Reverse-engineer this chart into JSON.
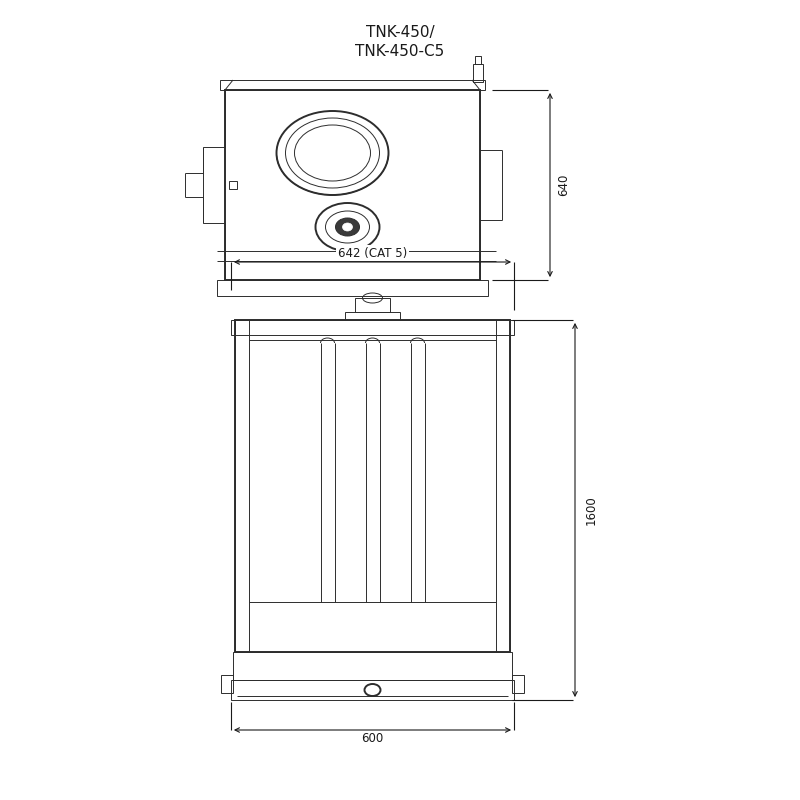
{
  "title": "TNK-450/\nTNK-450-C5",
  "bg_color": "#ffffff",
  "line_color": "#2d2d2d",
  "dim_color": "#1a1a1a",
  "dim_640": "640",
  "dim_642": "642 (CAT 5)",
  "dim_1600": "1600",
  "dim_600": "600",
  "lw_main": 1.4,
  "lw_med": 1.0,
  "lw_thin": 0.7,
  "lw_dim": 0.8
}
